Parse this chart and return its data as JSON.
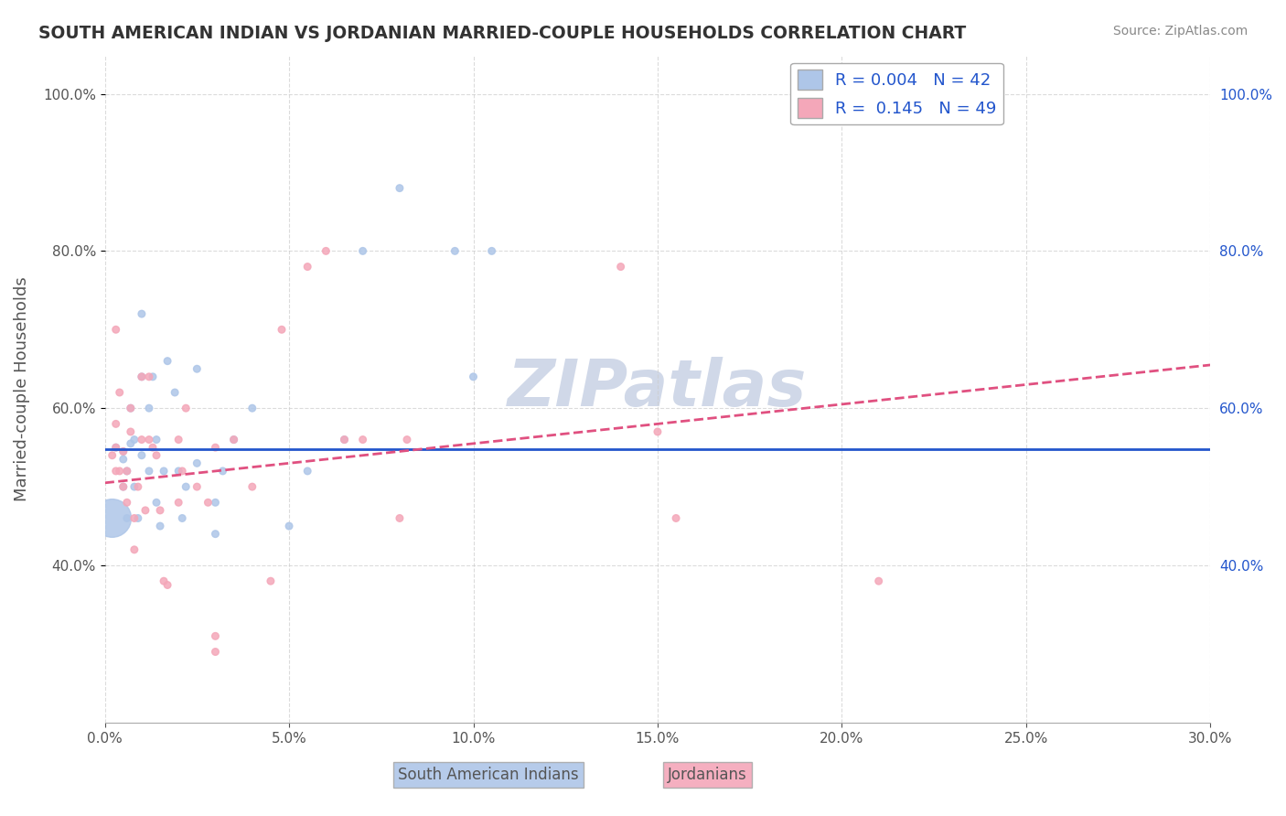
{
  "title": "SOUTH AMERICAN INDIAN VS JORDANIAN MARRIED-COUPLE HOUSEHOLDS CORRELATION CHART",
  "source": "Source: ZipAtlas.com",
  "ylabel": "Married-couple Households",
  "xlabel_blue": "South American Indians",
  "xlabel_pink": "Jordanians",
  "xmin": 0.0,
  "xmax": 0.3,
  "ymin": 0.2,
  "ymax": 1.05,
  "yticks": [
    0.4,
    0.6,
    0.8,
    1.0
  ],
  "ytick_labels": [
    "40.0%",
    "60.0%",
    "80.0%",
    "100.0%"
  ],
  "xtick_labels": [
    "0.0%",
    "",
    "",
    "",
    "",
    "",
    "30.0%"
  ],
  "legend_r_blue": "0.004",
  "legend_n_blue": "42",
  "legend_r_pink": "0.145",
  "legend_n_pink": "49",
  "watermark": "ZIPatlas",
  "blue_color": "#aec6e8",
  "pink_color": "#f4a7b9",
  "blue_line_color": "#2255cc",
  "pink_line_color": "#e05080",
  "blue_scatter": [
    [
      0.005,
      0.535
    ],
    [
      0.005,
      0.545
    ],
    [
      0.005,
      0.5
    ],
    [
      0.006,
      0.46
    ],
    [
      0.006,
      0.52
    ],
    [
      0.007,
      0.555
    ],
    [
      0.007,
      0.6
    ],
    [
      0.008,
      0.56
    ],
    [
      0.008,
      0.5
    ],
    [
      0.009,
      0.46
    ],
    [
      0.01,
      0.64
    ],
    [
      0.01,
      0.72
    ],
    [
      0.01,
      0.54
    ],
    [
      0.012,
      0.52
    ],
    [
      0.012,
      0.6
    ],
    [
      0.013,
      0.64
    ],
    [
      0.014,
      0.48
    ],
    [
      0.014,
      0.56
    ],
    [
      0.015,
      0.45
    ],
    [
      0.016,
      0.52
    ],
    [
      0.017,
      0.66
    ],
    [
      0.019,
      0.62
    ],
    [
      0.02,
      0.52
    ],
    [
      0.021,
      0.46
    ],
    [
      0.022,
      0.5
    ],
    [
      0.025,
      0.53
    ],
    [
      0.025,
      0.65
    ],
    [
      0.03,
      0.44
    ],
    [
      0.03,
      0.48
    ],
    [
      0.032,
      0.52
    ],
    [
      0.035,
      0.56
    ],
    [
      0.04,
      0.6
    ],
    [
      0.05,
      0.45
    ],
    [
      0.055,
      0.52
    ],
    [
      0.065,
      0.56
    ],
    [
      0.07,
      0.8
    ],
    [
      0.08,
      0.88
    ],
    [
      0.095,
      0.8
    ],
    [
      0.1,
      0.64
    ],
    [
      0.105,
      0.8
    ],
    [
      0.002,
      0.46
    ],
    [
      0.003,
      0.55
    ]
  ],
  "blue_scatter_size": [
    30,
    30,
    30,
    30,
    30,
    30,
    30,
    30,
    30,
    30,
    30,
    30,
    30,
    30,
    30,
    30,
    30,
    30,
    30,
    30,
    30,
    30,
    30,
    30,
    30,
    30,
    30,
    30,
    30,
    30,
    30,
    30,
    30,
    30,
    30,
    30,
    30,
    30,
    30,
    30,
    900,
    30
  ],
  "pink_scatter": [
    [
      0.002,
      0.54
    ],
    [
      0.003,
      0.7
    ],
    [
      0.003,
      0.58
    ],
    [
      0.004,
      0.52
    ],
    [
      0.004,
      0.62
    ],
    [
      0.005,
      0.545
    ],
    [
      0.005,
      0.5
    ],
    [
      0.006,
      0.48
    ],
    [
      0.006,
      0.52
    ],
    [
      0.007,
      0.57
    ],
    [
      0.007,
      0.6
    ],
    [
      0.008,
      0.42
    ],
    [
      0.008,
      0.46
    ],
    [
      0.009,
      0.5
    ],
    [
      0.01,
      0.64
    ],
    [
      0.01,
      0.56
    ],
    [
      0.011,
      0.47
    ],
    [
      0.012,
      0.64
    ],
    [
      0.012,
      0.56
    ],
    [
      0.013,
      0.55
    ],
    [
      0.014,
      0.54
    ],
    [
      0.015,
      0.47
    ],
    [
      0.016,
      0.38
    ],
    [
      0.017,
      0.375
    ],
    [
      0.02,
      0.56
    ],
    [
      0.02,
      0.48
    ],
    [
      0.021,
      0.52
    ],
    [
      0.022,
      0.6
    ],
    [
      0.025,
      0.5
    ],
    [
      0.028,
      0.48
    ],
    [
      0.03,
      0.55
    ],
    [
      0.03,
      0.31
    ],
    [
      0.03,
      0.29
    ],
    [
      0.035,
      0.56
    ],
    [
      0.04,
      0.5
    ],
    [
      0.045,
      0.38
    ],
    [
      0.048,
      0.7
    ],
    [
      0.055,
      0.78
    ],
    [
      0.06,
      0.8
    ],
    [
      0.065,
      0.56
    ],
    [
      0.07,
      0.56
    ],
    [
      0.08,
      0.46
    ],
    [
      0.082,
      0.56
    ],
    [
      0.14,
      0.78
    ],
    [
      0.15,
      0.57
    ],
    [
      0.155,
      0.46
    ],
    [
      0.21,
      0.38
    ],
    [
      0.003,
      0.55
    ],
    [
      0.003,
      0.52
    ]
  ],
  "pink_scatter_size": [
    30,
    30,
    30,
    30,
    30,
    30,
    30,
    30,
    30,
    30,
    30,
    30,
    30,
    30,
    30,
    30,
    30,
    30,
    30,
    30,
    30,
    30,
    30,
    30,
    30,
    30,
    30,
    30,
    30,
    30,
    30,
    30,
    30,
    30,
    30,
    30,
    30,
    30,
    30,
    30,
    30,
    30,
    30,
    30,
    30,
    30,
    30,
    30,
    30
  ],
  "blue_line_x": [
    0.0,
    0.3
  ],
  "blue_line_y": [
    0.548,
    0.548
  ],
  "pink_line_x": [
    0.0,
    0.3
  ],
  "pink_line_y": [
    0.505,
    0.655
  ],
  "grid_color": "#cccccc",
  "bg_color": "#ffffff",
  "title_color": "#333333",
  "watermark_color": "#d0d8e8",
  "axis_label_color": "#555555"
}
